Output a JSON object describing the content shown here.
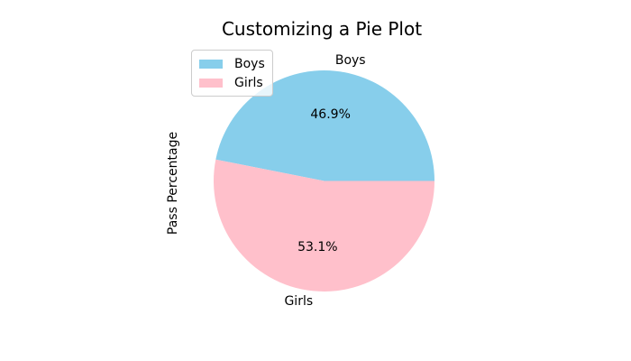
{
  "figure": {
    "background": "#ffffff"
  },
  "chart_data": {
    "type": "pie",
    "title": "Customizing a Pie Plot",
    "ylabel": "Pass Percentage",
    "labels": [
      "Boys",
      "Girls"
    ],
    "values": [
      46.9,
      53.1
    ],
    "pct_labels": [
      "46.9%",
      "53.1%"
    ],
    "colors": [
      "#87ceeb",
      "#ffc0cb"
    ],
    "start_angle_deg": 0,
    "counterclock": true,
    "grid": false,
    "legend": {
      "position": "upper left",
      "entries": [
        "Boys",
        "Girls"
      ]
    }
  }
}
